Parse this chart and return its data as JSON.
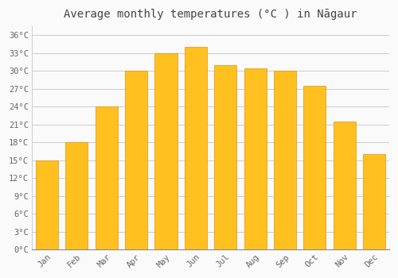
{
  "title": "Average monthly temperatures (°C ) in Nāgaur",
  "months": [
    "Jan",
    "Feb",
    "Mar",
    "Apr",
    "May",
    "Jun",
    "Jul",
    "Aug",
    "Sep",
    "Oct",
    "Nov",
    "Dec"
  ],
  "values": [
    15,
    18,
    24,
    30,
    33,
    34,
    31,
    30.5,
    30,
    27.5,
    21.5,
    16
  ],
  "bar_color_top": "#FFC020",
  "bar_color_bottom": "#F5A800",
  "bar_edge_color": "#E8900A",
  "background_color": "#FAFAFA",
  "grid_color": "#CCCCCC",
  "ytick_labels": [
    "0°C",
    "3°C",
    "6°C",
    "9°C",
    "12°C",
    "15°C",
    "18°C",
    "21°C",
    "24°C",
    "27°C",
    "30°C",
    "33°C",
    "36°C"
  ],
  "ytick_values": [
    0,
    3,
    6,
    9,
    12,
    15,
    18,
    21,
    24,
    27,
    30,
    33,
    36
  ],
  "ylim": [
    0,
    37.5
  ],
  "title_fontsize": 10,
  "tick_fontsize": 7.5,
  "title_color": "#444444",
  "tick_color": "#666666",
  "bar_width": 0.75
}
